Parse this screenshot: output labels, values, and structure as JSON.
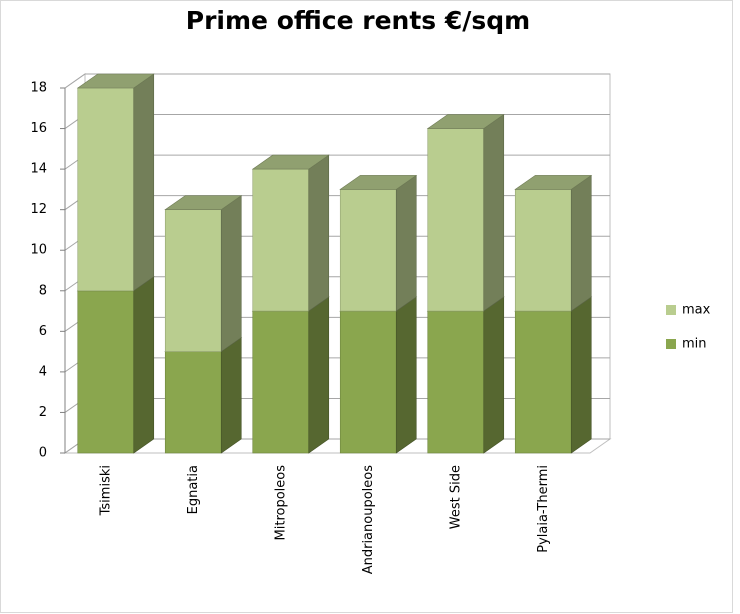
{
  "chart_data": {
    "type": "bar3d_stacked",
    "title": "Prime office rents €/sqm",
    "categories": [
      "Tsimiski",
      "Egnatia",
      "Mitropoleos",
      "Andrianoupoleos",
      "West Side",
      "Pylaia-Thermi"
    ],
    "series": [
      {
        "name": "min",
        "color": "#8aa64e",
        "values": [
          8,
          5,
          7,
          7,
          7,
          7
        ]
      },
      {
        "name": "max",
        "color": "#b9cd8f",
        "values": [
          10,
          7,
          7,
          6,
          9,
          6
        ]
      }
    ],
    "ylim": [
      0,
      18
    ],
    "yticks": [
      0,
      2,
      4,
      6,
      8,
      10,
      12,
      14,
      16,
      18
    ],
    "grid": true,
    "legend": "right"
  }
}
